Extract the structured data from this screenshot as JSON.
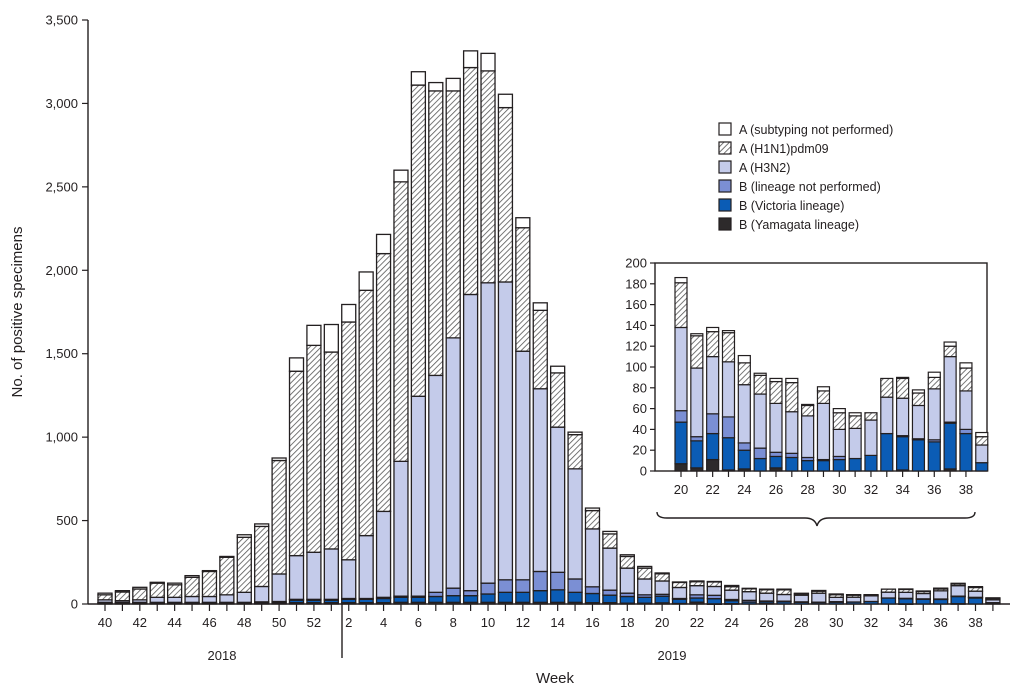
{
  "chart_data": {
    "type": "bar",
    "stacked": true,
    "xlabel": "Week",
    "ylabel": "No. of positive specimens",
    "ylim": [
      0,
      3500
    ],
    "ytick_labels": [
      "0",
      "500",
      "1,000",
      "1,500",
      "2,000",
      "2,500",
      "3,000",
      "3,500"
    ],
    "yticks": [
      0,
      500,
      1000,
      1500,
      2000,
      2500,
      3000,
      3500
    ],
    "x": [
      40,
      41,
      42,
      43,
      44,
      45,
      46,
      47,
      48,
      49,
      50,
      51,
      52,
      1,
      2,
      3,
      4,
      5,
      6,
      7,
      8,
      9,
      10,
      11,
      12,
      13,
      14,
      15,
      16,
      17,
      18,
      19,
      20,
      21,
      22,
      23,
      24,
      25,
      26,
      27,
      28,
      29,
      30,
      31,
      32,
      33,
      34,
      35,
      36,
      37,
      38,
      39
    ],
    "xtick_labels": [
      "40",
      "42",
      "44",
      "46",
      "48",
      "50",
      "52",
      "2",
      "4",
      "6",
      "8",
      "10",
      "12",
      "14",
      "16",
      "18",
      "20",
      "22",
      "24",
      "26",
      "28",
      "30",
      "32",
      "34",
      "36",
      "38"
    ],
    "year_labels": [
      "2018",
      "2019"
    ],
    "legend_placement": "top-right",
    "series": [
      {
        "name": "B (Yamagata lineage)",
        "color": "#2d2a2b",
        "pattern": "solid",
        "values": [
          5,
          5,
          5,
          5,
          5,
          5,
          5,
          5,
          5,
          5,
          5,
          8,
          8,
          8,
          8,
          8,
          8,
          10,
          10,
          10,
          10,
          10,
          10,
          10,
          10,
          10,
          10,
          10,
          8,
          8,
          5,
          5,
          7,
          3,
          11,
          1,
          2,
          0,
          3,
          0,
          0,
          0,
          0,
          0,
          0,
          0,
          1,
          0,
          0,
          2,
          0,
          0
        ]
      },
      {
        "name": "B (Victoria lineage)",
        "color": "#0b5cb5",
        "pattern": "solid",
        "values": [
          3,
          3,
          3,
          3,
          3,
          3,
          3,
          3,
          3,
          5,
          5,
          15,
          15,
          15,
          20,
          20,
          25,
          30,
          30,
          35,
          40,
          40,
          50,
          60,
          60,
          70,
          75,
          60,
          55,
          45,
          40,
          35,
          40,
          26,
          25,
          31,
          18,
          12,
          11,
          13,
          10,
          10,
          11,
          12,
          15,
          36,
          32,
          30,
          28,
          44,
          36,
          8
        ]
      },
      {
        "name": "B (lineage not performed)",
        "color": "#7b8fd4",
        "pattern": "solid",
        "values": [
          2,
          2,
          2,
          2,
          2,
          2,
          2,
          2,
          2,
          3,
          5,
          5,
          5,
          5,
          5,
          5,
          7,
          7,
          7,
          25,
          45,
          30,
          65,
          75,
          75,
          115,
          105,
          80,
          40,
          30,
          20,
          15,
          11,
          4,
          19,
          20,
          7,
          10,
          4,
          4,
          3,
          1,
          3,
          0,
          0,
          0,
          1,
          1,
          2,
          1,
          4,
          0
        ]
      },
      {
        "name": "A (H3N2)",
        "color": "#c4cbea",
        "pattern": "solid",
        "values": [
          15,
          10,
          15,
          30,
          30,
          35,
          35,
          45,
          60,
          92,
          165,
          262,
          282,
          302,
          232,
          377,
          515,
          808,
          1198,
          1300,
          1500,
          1775,
          1800,
          1785,
          1370,
          1095,
          870,
          660,
          347,
          252,
          150,
          95,
          80,
          66,
          55,
          53,
          56,
          52,
          47,
          40,
          40,
          54,
          26,
          29,
          34,
          35,
          36,
          32,
          49,
          63,
          37,
          17
        ]
      },
      {
        "name": "A (H1N1)pdm09",
        "color": "#ffffff",
        "pattern": "hatch",
        "values": [
          30,
          52,
          65,
          85,
          75,
          115,
          150,
          225,
          330,
          360,
          680,
          1105,
          1240,
          1180,
          1425,
          1470,
          1545,
          1675,
          1865,
          1705,
          1480,
          1360,
          1270,
          1045,
          740,
          470,
          325,
          205,
          110,
          85,
          70,
          65,
          43,
          31,
          24,
          28,
          21,
          18,
          21,
          28,
          10,
          12,
          16,
          12,
          7,
          18,
          19,
          12,
          11,
          10,
          22,
          8
        ]
      },
      {
        "name": "A (subtyping not performed)",
        "color": "#ffffff",
        "pattern": "solid",
        "values": [
          10,
          8,
          10,
          5,
          10,
          10,
          5,
          5,
          15,
          15,
          15,
          80,
          120,
          165,
          105,
          110,
          115,
          70,
          80,
          50,
          75,
          100,
          105,
          80,
          60,
          45,
          40,
          15,
          15,
          15,
          10,
          10,
          5,
          2,
          4,
          2,
          7,
          2,
          3,
          4,
          1,
          4,
          4,
          3,
          0,
          0,
          1,
          3,
          5,
          4,
          5,
          4
        ]
      }
    ],
    "legend_order": [
      "A (subtyping not performed)",
      "A (H1N1)pdm09",
      "A (H3N2)",
      "B (lineage not performed)",
      "B (Victoria lineage)",
      "B (Yamagata lineage)"
    ],
    "inset": {
      "x_range": [
        20,
        39
      ],
      "ylim": [
        0,
        200
      ],
      "yticks": [
        0,
        20,
        40,
        60,
        80,
        100,
        120,
        140,
        160,
        180,
        200
      ],
      "ytick_labels": [
        "0",
        "20",
        "40",
        "60",
        "80",
        "100",
        "120",
        "140",
        "160",
        "180",
        "200"
      ],
      "xtick_labels": [
        "20",
        "22",
        "24",
        "26",
        "28",
        "30",
        "32",
        "34",
        "36",
        "38"
      ]
    }
  }
}
